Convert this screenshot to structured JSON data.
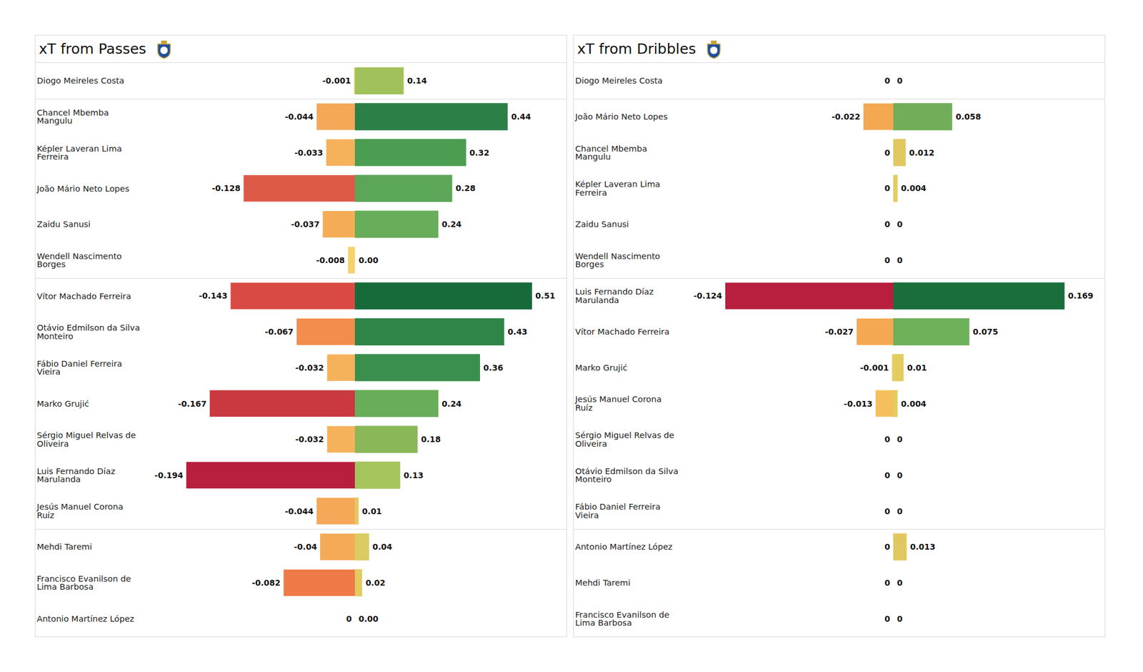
{
  "chart_data": [
    {
      "type": "bar",
      "title": "xT from Passes",
      "orientation": "horizontal",
      "data_labels": true,
      "tick_labels": "y",
      "categories": [
        "Diogo Meireles Costa",
        "Chancel Mbemba Mangulu",
        "Képler Laveran Lima Ferreira",
        "João Mário Neto Lopes",
        "Zaidu Sanusi",
        "Wendell Nascimento Borges",
        "Vítor Machado Ferreira",
        "Otávio Edmilson da Silva Monteiro",
        "Fábio Daniel Ferreira Vieira",
        "Marko Grujić",
        "Sérgio Miguel Relvas de Oliveira",
        "Luis Fernando Díaz Marulanda",
        "Jesús Manuel Corona Ruíz",
        "Mehdi Taremi",
        "Francisco Evanilson de Lima Barbosa",
        "Antonio Martínez López"
      ],
      "groups": [
        1,
        5,
        7,
        3
      ],
      "series": [
        {
          "xlim": [
            -0.24,
            0
          ],
          "values": [
            -0.001,
            -0.044,
            -0.033,
            -0.128,
            -0.037,
            -0.008,
            -0.143,
            -0.067,
            -0.032,
            -0.167,
            -0.032,
            -0.194,
            -0.044,
            -0.04,
            -0.082,
            0
          ],
          "colors": [
            "#f0d46a",
            "#f5a857",
            "#f6b15b",
            "#de5a48",
            "#f5ac57",
            "#f6d36a",
            "#d94b42",
            "#f28d4e",
            "#f6b25b",
            "#c9393f",
            "#f6b25b",
            "#b81e3d",
            "#f5a857",
            "#f5aa57",
            "#f07a47",
            "#f0d46a"
          ]
        },
        {
          "xlim": [
            0,
            0.61
          ],
          "values": [
            0.14,
            0.44,
            0.32,
            0.28,
            0.24,
            0,
            0.51,
            0.43,
            0.36,
            0.24,
            0.18,
            0.13,
            0.01,
            0.04,
            0.02,
            0
          ],
          "value_labels": [
            "0.14",
            "0.44",
            "0.32",
            "0.28",
            "0.24",
            "0.00",
            "0.51",
            "0.43",
            "0.36",
            "0.24",
            "0.18",
            "0.13",
            "0.01",
            "0.04",
            "0.02",
            "0.00"
          ],
          "colors": [
            "#a1c25a",
            "#2c7f46",
            "#4b9d51",
            "#5ba657",
            "#68ad59",
            "#e4d06a",
            "#176b3b",
            "#2f8448",
            "#3b8f4e",
            "#68ad59",
            "#8ab858",
            "#a6c45c",
            "#e2ca62",
            "#d9cc62",
            "#e2ca62",
            "#e4d06a"
          ]
        }
      ]
    },
    {
      "type": "bar",
      "title": "xT from Dribbles",
      "orientation": "horizontal",
      "data_labels": true,
      "tick_labels": "y",
      "categories": [
        "Diogo Meireles Costa",
        "João Mário Neto Lopes",
        "Chancel Mbemba Mangulu",
        "Képler Laveran Lima Ferreira",
        "Zaidu Sanusi",
        "Wendell Nascimento Borges",
        "Luis Fernando Díaz Marulanda",
        "Vítor Machado Ferreira",
        "Marko Grujić",
        "Jesús Manuel Corona Ruíz",
        "Sérgio Miguel Relvas de Oliveira",
        "Otávio Edmilson da Silva Monteiro",
        "Fábio Daniel Ferreira Vieira",
        "Antonio Martínez López",
        "Mehdi Taremi",
        "Francisco Evanilson de Lima Barbosa"
      ],
      "groups": [
        1,
        5,
        7,
        3
      ],
      "series": [
        {
          "xlim": [
            -0.154,
            0
          ],
          "values": [
            0,
            -0.022,
            0,
            0,
            0,
            0,
            -0.124,
            -0.027,
            -0.001,
            -0.013,
            0,
            0,
            0,
            0,
            0,
            0
          ],
          "colors": [
            "#e4d06a",
            "#f5a852",
            "#e4d06a",
            "#e4d06a",
            "#e4d06a",
            "#e4d06a",
            "#b81e3d",
            "#f5a852",
            "#e8d068",
            "#f5bf5e",
            "#e4d06a",
            "#e4d06a",
            "#e4d06a",
            "#e4d06a",
            "#e4d06a",
            "#e4d06a"
          ]
        },
        {
          "xlim": [
            0,
            0.209
          ],
          "values": [
            0,
            0.058,
            0.012,
            0.004,
            0,
            0,
            0.169,
            0.075,
            0.01,
            0.004,
            0,
            0,
            0,
            0.013,
            0,
            0
          ],
          "colors": [
            "#e4d06a",
            "#72ae59",
            "#e0c860",
            "#e2cd5e",
            "#e4d06a",
            "#e4d06a",
            "#1a6e3c",
            "#6fb05a",
            "#e2cd5e",
            "#e2cd5e",
            "#e4d06a",
            "#e4d06a",
            "#e4d06a",
            "#e0c860",
            "#e4d06a",
            "#e4d06a"
          ]
        }
      ]
    }
  ]
}
